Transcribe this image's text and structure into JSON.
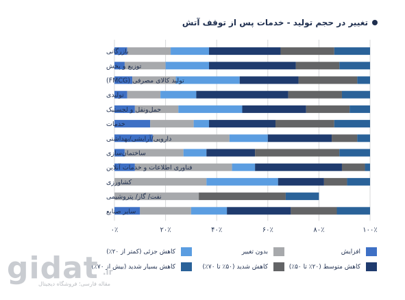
{
  "title": "تغییر در حجم تولید - خدمات پس از توقف آتش",
  "watermark": {
    "logo": "gidat",
    "domain": ".ir",
    "subtitle": "مقاله فارسی؛ فروشگاه دیجیتال"
  },
  "chart_data": {
    "type": "bar",
    "orientation": "horizontal",
    "stacked": "percent",
    "title": "تغییر در حجم تولید - خدمات پس از توقف آتش",
    "categories": [
      "بازرگانی",
      "توزیع و پخش",
      "تولید کالای مصرفی (FMCG)",
      "تولیدی",
      "حمل‌ونقل و لجستیک",
      "خدمات",
      "دارویی/آرایشی/بهداشتی",
      "ساختمان‌سازی",
      "فناوری اطلاعات و خدمات آنلاین",
      "کشاورزی",
      "نفت/ گاز/ پتروشیمی",
      "سایر صنایع"
    ],
    "series": [
      {
        "name": "افزایش",
        "color": "#3e70c5",
        "values": [
          5,
          4,
          7,
          5,
          8,
          14,
          15,
          4,
          8,
          0,
          0,
          10
        ]
      },
      {
        "name": "بدون تغییر",
        "color": "#a7a9ac",
        "values": [
          17,
          16,
          17,
          13,
          17,
          17,
          30,
          23,
          38,
          36,
          33,
          20
        ]
      },
      {
        "name": "کاهش جزئی (کمتر از ۲۰٪)",
        "color": "#5b9de1",
        "values": [
          15,
          17,
          25,
          14,
          25,
          6,
          15,
          9,
          9,
          28,
          0,
          14
        ]
      },
      {
        "name": "کاهش متوسط (۲۰٪ تا ۵۰٪)",
        "color": "#1f3b6e",
        "values": [
          28,
          34,
          23,
          36,
          25,
          26,
          25,
          19,
          34,
          18,
          0,
          25
        ]
      },
      {
        "name": "کاهش شدید (۵۰٪ تا ۷۰٪)",
        "color": "#636466",
        "values": [
          21,
          17,
          23,
          21,
          17,
          23,
          10,
          33,
          9,
          9,
          34,
          18
        ]
      },
      {
        "name": "کاهش بسیار شدید (بیش از ۷۰٪)",
        "color": "#2a6299",
        "values": [
          14,
          12,
          5,
          11,
          8,
          14,
          5,
          12,
          2,
          9,
          13,
          13
        ]
      }
    ],
    "xlim": [
      0,
      100
    ],
    "ticks": [
      "۰٪",
      "۲۰٪",
      "۴۰٪",
      "۶۰٪",
      "۸۰٪",
      "۱۰۰٪"
    ],
    "grid": true,
    "legend_position": "bottom"
  }
}
